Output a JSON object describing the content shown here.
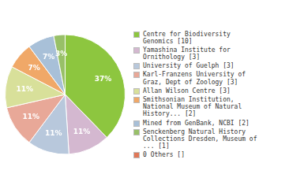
{
  "chart_data": {
    "type": "pie",
    "categories": [
      "Centre for Biodiversity\nGenomics [10]",
      "Yamashina Institute for\nOrnithology [3]",
      "University of Guelph [3]",
      "Karl-Franzens University of\nGraz, Dept of Zoology [3]",
      "Allan Wilson Centre [3]",
      "Smithsonian Institution,\nNational Museum of Natural\nHistory... [2]",
      "Mined from GenBank, NCBI [2]",
      "Senckenberg Natural History\nCollections Dresden, Museum of\n... [1]",
      "0 Others []"
    ],
    "values": [
      37,
      11,
      11,
      11,
      11,
      7,
      7,
      3,
      0
    ],
    "value_labels": [
      "37%",
      "11%",
      "11%",
      "11%",
      "11%",
      "7%",
      "7%",
      "3%",
      null
    ],
    "colors": [
      "#8DC63F",
      "#D4B8D0",
      "#B8C8DC",
      "#E8A898",
      "#D8E09A",
      "#F0A868",
      "#A8C0D8",
      "#98C068",
      "#E07858"
    ],
    "data_labels": true,
    "legend": "right"
  }
}
